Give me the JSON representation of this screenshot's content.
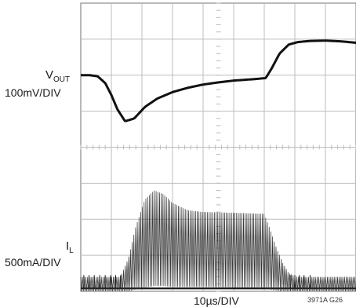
{
  "chart_data": {
    "type": "line",
    "title": "",
    "x_axis": {
      "label": "10µs/DIV",
      "divisions": 9,
      "range": [
        0,
        9
      ]
    },
    "y_axis": {
      "divisions": 8,
      "range": [
        -4,
        4
      ]
    },
    "grid": true,
    "figure_id": "3971A G26",
    "colors": {
      "grid": "#bdbdbd",
      "trace": "#111111"
    },
    "series": [
      {
        "name": "VOUT",
        "scale": "100mV/DIV",
        "x": [
          0,
          0.3,
          0.55,
          0.8,
          1.0,
          1.2,
          1.45,
          1.75,
          2.1,
          2.5,
          3.0,
          3.5,
          4.0,
          4.5,
          5.0,
          5.5,
          5.8,
          6.05,
          6.25,
          6.5,
          6.8,
          7.1,
          7.5,
          8.0,
          8.5,
          9.0
        ],
        "y": [
          2.0,
          2.0,
          1.97,
          1.78,
          1.45,
          1.05,
          0.72,
          0.8,
          1.12,
          1.35,
          1.53,
          1.65,
          1.74,
          1.8,
          1.85,
          1.88,
          1.9,
          1.92,
          2.2,
          2.6,
          2.85,
          2.92,
          2.95,
          2.96,
          2.94,
          2.9
        ]
      },
      {
        "name": "IL",
        "scale": "500mA/DIV",
        "envelope_x": [
          0,
          1.3,
          1.55,
          1.8,
          2.1,
          2.4,
          2.7,
          3.0,
          3.5,
          4.0,
          5.0,
          6.0,
          6.2,
          6.4,
          6.6,
          6.8,
          7.1,
          9.0
        ],
        "envelope_upper": [
          -3.6,
          -3.6,
          -3.1,
          -2.2,
          -1.45,
          -1.2,
          -1.3,
          -1.55,
          -1.75,
          -1.8,
          -1.82,
          -1.85,
          -2.3,
          -2.8,
          -3.2,
          -3.5,
          -3.6,
          -3.6
        ],
        "envelope_lower": [
          -4.0,
          -4.0,
          -4.0,
          -3.95,
          -3.9,
          -3.85,
          -3.85,
          -3.88,
          -3.88,
          -3.88,
          -3.9,
          -3.92,
          -3.95,
          -3.98,
          -4.0,
          -4.0,
          -4.0,
          -4.0
        ],
        "baseline": -3.92,
        "pulse_x": [
          0.1,
          0.27,
          0.44,
          0.62,
          0.8,
          0.98,
          1.14,
          1.3,
          6.85,
          7.0,
          7.15,
          7.3,
          7.5
        ],
        "pulse_peak": -3.55
      }
    ]
  },
  "labels": {
    "vout_name": "V",
    "vout_sub": "OUT",
    "vout_scale": "100mV/DIV",
    "il_name": "I",
    "il_sub": "L",
    "il_scale": "500mA/DIV",
    "x_scale": "10µs/DIV",
    "figure_id": "3971A G26"
  }
}
